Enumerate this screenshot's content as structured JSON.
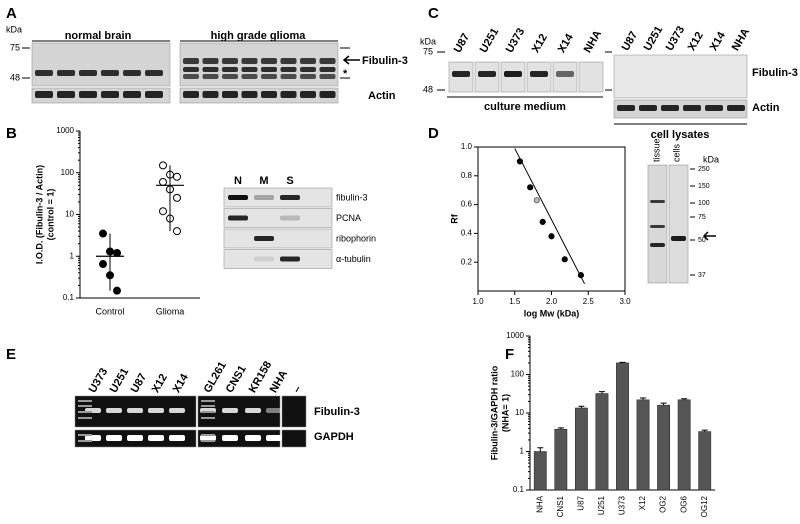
{
  "panels": {
    "a": "A",
    "b": "B",
    "c": "C",
    "d": "D",
    "e": "E",
    "f": "F"
  },
  "blot_a": {
    "kda": "kDa",
    "m75": "75",
    "m48": "48",
    "group1": "normal brain",
    "group2": "high grade glioma",
    "band": "Fibulin-3",
    "star": "*",
    "loading": "Actin"
  },
  "blot_c": {
    "kda": "kDa",
    "m75": "75",
    "m48": "48",
    "lanes_medium": [
      "U87",
      "U251",
      "U373",
      "X12",
      "X14",
      "NHA"
    ],
    "lanes_lysate": [
      "U87",
      "U251",
      "U373",
      "X12",
      "X14",
      "NHA"
    ],
    "band": "Fibulin-3",
    "loading": "Actin",
    "medium": "culture medium",
    "lysates": "cell lysates"
  },
  "blot_b": {
    "lanes": [
      "N",
      "M",
      "S"
    ],
    "rows": [
      "fibulin-3",
      "PCNA",
      "ribophorin",
      "α-tubulin"
    ]
  },
  "blot_d": {
    "lanes": [
      "tissue",
      "cells"
    ],
    "kda": "kDa",
    "markers": [
      "250",
      "150",
      "100",
      "75",
      "50",
      "37"
    ]
  },
  "gel_e": {
    "lanes": [
      "U373",
      "U251",
      "U87",
      "X12",
      "X14",
      "GL261",
      "CNS1",
      "KR158",
      "NHA",
      "–"
    ],
    "band": "Fibulin-3",
    "loading": "GAPDH"
  },
  "chart_data": [
    {
      "type": "dot",
      "ylabel": [
        "I.O.D. (Fibulin-3 / Actin)",
        "(control = 1)"
      ],
      "categories": [
        "Control",
        "Glioma"
      ],
      "points": [
        [
          3.5,
          1.3,
          1.2,
          0.65,
          0.35,
          0.15
        ],
        [
          150,
          90,
          80,
          60,
          40,
          25,
          12,
          8,
          4
        ]
      ],
      "means": [
        1,
        50
      ],
      "marker_fill": [
        "#000000",
        "#ffffff"
      ],
      "log": true,
      "ylim": [
        0.1,
        1000
      ],
      "yticks": [
        0.1,
        1,
        10,
        100,
        1000
      ]
    },
    {
      "type": "scatter",
      "xlabel": "log Mw (kDa)",
      "ylabel": "Rf",
      "x": [
        1.57,
        1.71,
        1.8,
        1.88,
        2.0,
        2.18,
        2.4
      ],
      "values": [
        0.9,
        0.72,
        0.63,
        0.48,
        0.38,
        0.22,
        0.11
      ],
      "point_colors": [
        "#000000",
        "#000000",
        "#bbbbbb",
        "#000000",
        "#000000",
        "#000000",
        "#000000"
      ],
      "fit_x": [
        1.5,
        2.45
      ],
      "fit_y": [
        0.99,
        0.05
      ],
      "xlim": [
        1,
        3
      ],
      "xticks": [
        {
          "value": 1,
          "label": "1.0"
        },
        {
          "value": 1.5,
          "label": "1.5"
        },
        {
          "value": 2,
          "label": "2.0"
        },
        {
          "value": 2.5,
          "label": "2.5"
        },
        {
          "value": 3,
          "label": "3.0"
        }
      ],
      "ylim": [
        0,
        1
      ],
      "yticks": [
        0.2,
        0.4,
        0.6,
        0.8,
        {
          "value": 1,
          "label": "1.0"
        }
      ]
    },
    {
      "type": "bar",
      "ylabel": [
        "Fibulin-3/GAPDH ratio",
        "(NHA= 1)"
      ],
      "categories": [
        "NHA",
        "CNS1",
        "U87",
        "U251",
        "U373",
        "X12",
        "OG2",
        "OG6",
        "OG12"
      ],
      "values": [
        1,
        3.8,
        13.5,
        32,
        200,
        22,
        16,
        22,
        3.3
      ],
      "errors": [
        0.25,
        0.3,
        1.5,
        4,
        6,
        2.5,
        2,
        1.5,
        0.3
      ],
      "color": "#555555",
      "log": true,
      "ylim": [
        0.1,
        1000
      ],
      "yticks": [
        0.1,
        1,
        10,
        100,
        1000
      ]
    }
  ]
}
